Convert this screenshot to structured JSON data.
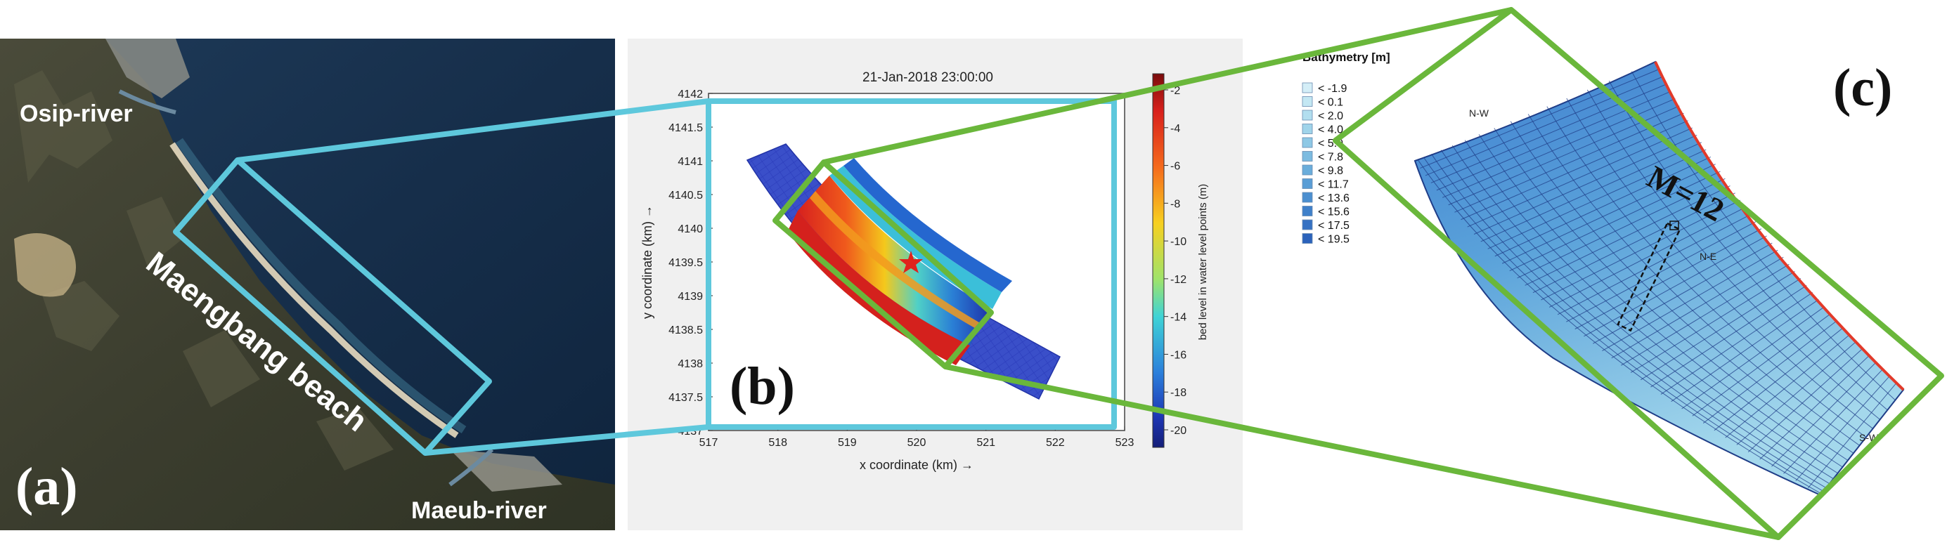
{
  "panel_a": {
    "label": "(a)",
    "places": {
      "osip_river": "Osip-river",
      "maengbang_beach": "Maengbang beach",
      "maeub_river": "Maeub-river"
    }
  },
  "panel_b": {
    "label": "(b)",
    "timestamp": "21-Jan-2018 23:00:00",
    "xlabel": "x coordinate (km) →",
    "ylabel": "y coordinate (km) →",
    "x_ticks": [
      "517",
      "518",
      "519",
      "520",
      "521",
      "522",
      "523"
    ],
    "y_ticks": [
      "4137",
      "4137.5",
      "4138",
      "4138.5",
      "4139",
      "4139.5",
      "4140",
      "4140.5",
      "4141",
      "4141.5",
      "4142"
    ],
    "colorbar_label": "bed level in water level points (m)",
    "colorbar_ticks": [
      "-2",
      "-4",
      "-6",
      "-8",
      "-10",
      "-12",
      "-14",
      "-16",
      "-18",
      "-20"
    ]
  },
  "panel_c": {
    "label": "(c)",
    "legend_title": "Bathymetry [m]",
    "legend_items": [
      "< -1.9",
      "< 0.1",
      "< 2.0",
      "< 4.0",
      "< 5.9",
      "< 7.8",
      "< 9.8",
      "< 11.7",
      "< 13.6",
      "< 15.6",
      "< 17.5",
      "< 19.5"
    ],
    "legend_colors": [
      "#d4eef7",
      "#c3e7f3",
      "#b2deef",
      "#a0d4ea",
      "#8ec8e5",
      "#7cbbe0",
      "#6aaddb",
      "#5a9ed6",
      "#4b8fd0",
      "#3f80ca",
      "#3571c3",
      "#2b62bb"
    ],
    "corner_nw": "N-W",
    "corner_ne": "N-E",
    "corner_sw": "S-W",
    "annotation": "M=12"
  },
  "colors": {
    "zoom_box_cyan": "#5ec8dc",
    "zoom_box_green": "#6ab73b",
    "shoreline_red": "#e23a2a"
  }
}
